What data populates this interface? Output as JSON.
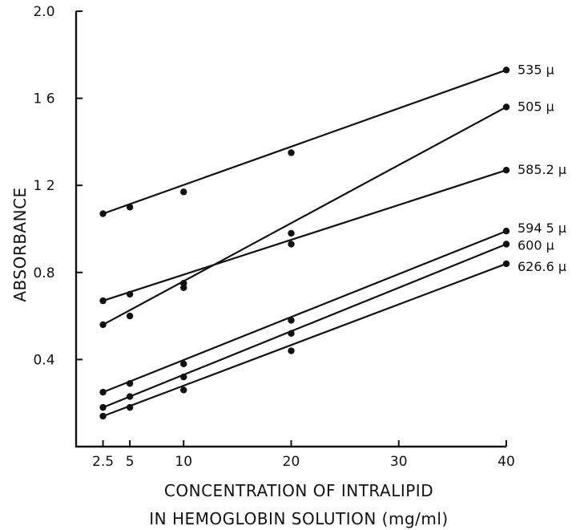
{
  "chart_data": {
    "type": "line",
    "xlabel_lines": [
      "CONCENTRATION OF INTRALIPID",
      "IN HEMOGLOBIN SOLUTION (mg/ml)"
    ],
    "ylabel": "ABSORBANCE",
    "x_ticks": [
      2.5,
      5,
      10,
      20,
      30,
      40
    ],
    "x_tick_labels": [
      "2.5",
      "5",
      "10",
      "20",
      "30",
      "40"
    ],
    "y_ticks": [
      0.4,
      0.8,
      1.2,
      1.6,
      2.0
    ],
    "y_tick_labels": [
      "0.4",
      "0.8",
      "1 2",
      "1 6",
      "2.0"
    ],
    "xlim": [
      0,
      40
    ],
    "ylim": [
      0,
      2.0
    ],
    "grid": false,
    "series": [
      {
        "name": "535 µ",
        "points": [
          [
            2.5,
            1.07
          ],
          [
            5,
            1.1
          ],
          [
            10,
            1.17
          ],
          [
            20,
            1.35
          ],
          [
            40,
            1.73
          ]
        ],
        "line": [
          [
            2.5,
            1.07
          ],
          [
            40,
            1.73
          ]
        ]
      },
      {
        "name": "505 µ",
        "points": [
          [
            2.5,
            0.56
          ],
          [
            5,
            0.6
          ],
          [
            10,
            0.73
          ],
          [
            10,
            0.75
          ],
          [
            20,
            0.98
          ],
          [
            40,
            1.56
          ]
        ],
        "line": [
          [
            2.5,
            0.56
          ],
          [
            40,
            1.56
          ]
        ]
      },
      {
        "name": "585.2 µ",
        "points": [
          [
            2.5,
            0.67
          ],
          [
            5,
            0.7
          ],
          [
            10,
            0.75
          ],
          [
            20,
            0.93
          ],
          [
            40,
            1.27
          ]
        ],
        "line": [
          [
            2.5,
            0.67
          ],
          [
            40,
            1.27
          ]
        ]
      },
      {
        "name": "594 5 µ",
        "points": [
          [
            2.5,
            0.25
          ],
          [
            5,
            0.29
          ],
          [
            10,
            0.38
          ],
          [
            20,
            0.58
          ],
          [
            40,
            0.99
          ]
        ],
        "line": [
          [
            2.5,
            0.25
          ],
          [
            40,
            0.99
          ]
        ]
      },
      {
        "name": "600 µ",
        "points": [
          [
            2.5,
            0.18
          ],
          [
            5,
            0.23
          ],
          [
            10,
            0.32
          ],
          [
            20,
            0.52
          ],
          [
            40,
            0.93
          ]
        ],
        "line": [
          [
            2.5,
            0.18
          ],
          [
            40,
            0.93
          ]
        ]
      },
      {
        "name": "626.6 µ",
        "points": [
          [
            2.5,
            0.14
          ],
          [
            5,
            0.18
          ],
          [
            10,
            0.26
          ],
          [
            20,
            0.44
          ],
          [
            40,
            0.84
          ]
        ],
        "line": [
          [
            2.5,
            0.14
          ],
          [
            40,
            0.84
          ]
        ]
      }
    ]
  }
}
